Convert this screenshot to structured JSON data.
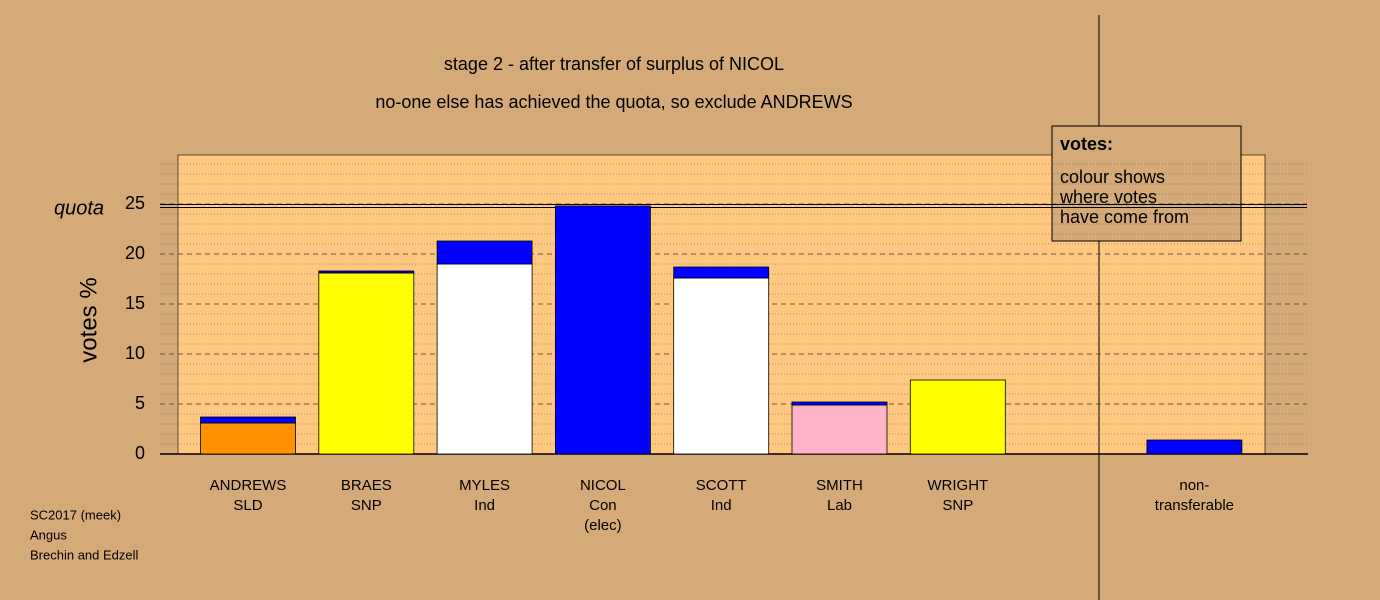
{
  "chart_data": {
    "type": "bar",
    "stacked": true,
    "title": "stage 2 - after transfer of surplus of NICOL",
    "subtitle": "no-one else has achieved the quota, so exclude ANDREWS",
    "y_label": "votes %",
    "quota_label": "quota",
    "quota": 24.8,
    "categories": [
      [
        "ANDREWS",
        "SLD"
      ],
      [
        "BRAES",
        "SNP"
      ],
      [
        "MYLES",
        "Ind"
      ],
      [
        "NICOL",
        "Con",
        "(elec)"
      ],
      [
        "SCOTT",
        "Ind"
      ],
      [
        "SMITH",
        "Lab"
      ],
      [
        "WRIGHT",
        "SNP"
      ],
      [
        "non-",
        "transferable"
      ]
    ],
    "series": [
      {
        "colors": [
          "#ff9000",
          "#ffff00",
          "#ffffff",
          "#0000ff",
          "#ffffff",
          "#ffb3c8",
          "#ffff00",
          "#0000ff"
        ],
        "values": [
          3.1,
          18.1,
          19.0,
          24.8,
          17.6,
          4.9,
          7.4,
          0
        ]
      },
      {
        "color": "#0000ff",
        "values": [
          0.6,
          0.2,
          2.3,
          0,
          1.1,
          0.3,
          0,
          1.4
        ]
      }
    ],
    "ylim": [
      0,
      30
    ],
    "yticks": [
      0,
      5,
      10,
      15,
      20,
      25
    ],
    "yminorticks": [
      1,
      2,
      3,
      4,
      6,
      7,
      8,
      9,
      11,
      12,
      13,
      14,
      16,
      17,
      18,
      19,
      21,
      22,
      23,
      24,
      26,
      27,
      28,
      29
    ],
    "legend": {
      "title": "votes:",
      "lines": [
        "colour shows",
        "where votes",
        "have come from"
      ]
    },
    "footer": [
      "SC2017 (meek)",
      "Angus",
      "Brechin and Edzell"
    ]
  }
}
